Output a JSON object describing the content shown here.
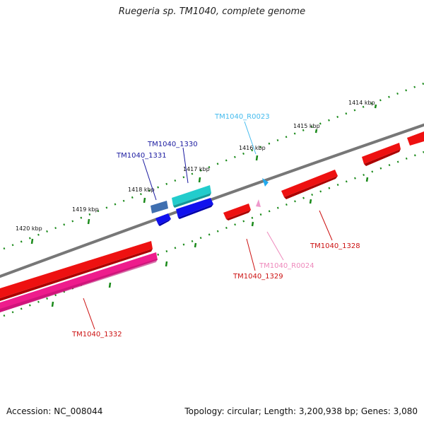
{
  "title": "Ruegeria sp. TM1040, complete genome",
  "footer": {
    "accession": "Accession: NC_008044",
    "summary": "Topology: circular; Length: 3,200,938 bp; Genes: 3,080"
  },
  "ticks": [
    {
      "label": "1414 kbp"
    },
    {
      "label": "1415 kbp"
    },
    {
      "label": "1416 kbp"
    },
    {
      "label": "1417 kbp"
    },
    {
      "label": "1418 kbp"
    },
    {
      "label": "1419 kbp"
    },
    {
      "label": "1420 kbp"
    }
  ],
  "genes": [
    {
      "id": "TM1040_R0023",
      "color": "#44bbee"
    },
    {
      "id": "TM1040_1330",
      "color": "#1a1aa0"
    },
    {
      "id": "TM1040_1331",
      "color": "#1a1aa0"
    },
    {
      "id": "TM1040_1328",
      "color": "#cc1111"
    },
    {
      "id": "TM1040_R0024",
      "color": "#ee88bb"
    },
    {
      "id": "TM1040_1329",
      "color": "#cc1111"
    },
    {
      "id": "TM1040_1332",
      "color": "#cc1111"
    }
  ]
}
